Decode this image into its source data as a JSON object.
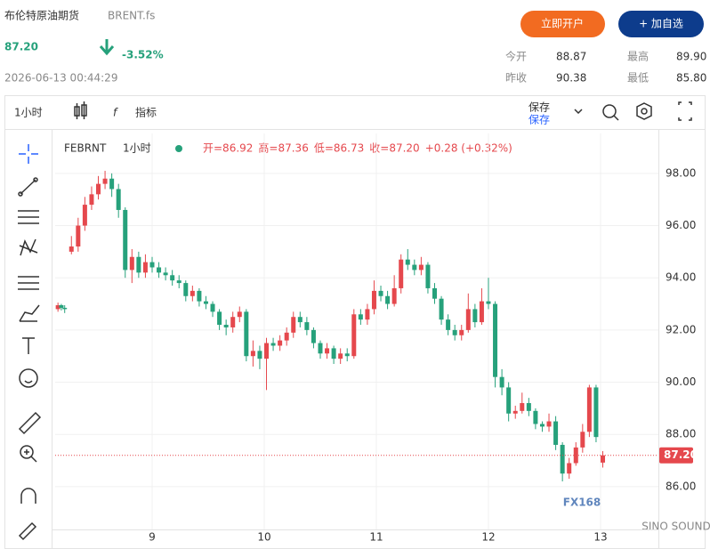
{
  "header": {
    "name": "布伦特原油期货",
    "code": "BRENT.fs",
    "price": "87.20",
    "change": "-3.52%",
    "datetime": "2026-06-13 00:44:29",
    "buttons": [
      "立即开户",
      "+ 加自选"
    ],
    "stats": [
      {
        "label": "今开",
        "value": "88.87"
      },
      {
        "label": "最高",
        "value": "89.90"
      },
      {
        "label": "昨收",
        "value": "90.38"
      },
      {
        "label": "最低",
        "value": "85.80"
      }
    ]
  },
  "toolbar": {
    "interval": "1小时",
    "indicators": "指标",
    "save": "保存",
    "save_sub": "保存"
  },
  "watermark": "FX168",
  "watermark_sub": "SINO SOUND",
  "chart_data": {
    "type": "candlestick",
    "symbol": "FEBRNT",
    "interval": "1小时",
    "legend": [
      "开=86.92",
      "高=87.36",
      "低=86.73",
      "收=87.20",
      "+0.28 (+0.32%)"
    ],
    "up_color": "#e5484d",
    "down_color": "#26a17b",
    "grid": true,
    "last_price": {
      "value": 87.2,
      "label": "87.20"
    },
    "xlim": [
      8.135,
      13.516
    ],
    "xticks": [
      9,
      10,
      11,
      12,
      13
    ],
    "ylim": [
      84.36,
      99.53
    ],
    "yticks": [
      {
        "value": 86,
        "label": "86.00"
      },
      {
        "value": 88,
        "label": "88.00"
      },
      {
        "value": 90,
        "label": "90.00"
      },
      {
        "value": 92,
        "label": "92.00"
      },
      {
        "value": 94,
        "label": "94.00"
      },
      {
        "value": 96,
        "label": "96.00"
      },
      {
        "value": 98,
        "label": "98.00"
      }
    ],
    "x": [
      8.16,
      8.19,
      8.22,
      8.28,
      8.34,
      8.4,
      8.46,
      8.52,
      8.58,
      8.64,
      8.7,
      8.76,
      8.82,
      8.88,
      8.94,
      9.0,
      9.06,
      9.12,
      9.18,
      9.24,
      9.3,
      9.36,
      9.42,
      9.48,
      9.54,
      9.6,
      9.66,
      9.72,
      9.78,
      9.84,
      9.9,
      9.96,
      10.02,
      10.08,
      10.14,
      10.2,
      10.26,
      10.32,
      10.38,
      10.44,
      10.5,
      10.56,
      10.62,
      10.68,
      10.74,
      10.8,
      10.86,
      10.92,
      10.98,
      11.04,
      11.1,
      11.16,
      11.22,
      11.28,
      11.34,
      11.4,
      11.46,
      11.52,
      11.58,
      11.64,
      11.7,
      11.76,
      11.82,
      11.88,
      11.94,
      12.0,
      12.06,
      12.12,
      12.18,
      12.24,
      12.3,
      12.36,
      12.42,
      12.48,
      12.54,
      12.6,
      12.66,
      12.72,
      12.78,
      12.84,
      12.9,
      12.96,
      13.02
    ],
    "open": [
      92.8,
      92.95,
      92.85,
      95.0,
      95.2,
      96.0,
      96.8,
      97.2,
      97.6,
      97.8,
      97.4,
      96.6,
      94.3,
      94.8,
      94.2,
      94.6,
      94.4,
      94.2,
      94.1,
      93.9,
      93.8,
      93.3,
      93.5,
      93.1,
      93.0,
      92.7,
      92.2,
      92.1,
      92.5,
      92.7,
      91.0,
      91.2,
      90.9,
      91.5,
      91.4,
      91.6,
      91.9,
      92.5,
      92.3,
      92.0,
      91.5,
      91.1,
      91.3,
      90.9,
      91.1,
      91.0,
      92.6,
      92.4,
      92.8,
      93.5,
      93.3,
      93.0,
      93.6,
      94.7,
      94.5,
      94.3,
      94.5,
      93.6,
      93.2,
      92.4,
      92.0,
      91.8,
      92.0,
      92.8,
      92.3,
      93.1,
      93.0,
      90.2,
      89.8,
      88.8,
      88.9,
      89.2,
      88.9,
      88.4,
      88.3,
      88.5,
      87.6,
      86.5,
      86.9,
      87.5,
      88.1,
      89.8,
      86.92
    ],
    "high": [
      93.05,
      93.0,
      92.95,
      95.6,
      96.3,
      97.1,
      97.5,
      97.9,
      98.1,
      98.0,
      97.6,
      96.7,
      95.1,
      95.0,
      94.9,
      94.8,
      94.6,
      94.4,
      94.3,
      94.1,
      93.9,
      93.7,
      93.6,
      93.3,
      93.1,
      92.8,
      92.4,
      92.7,
      92.9,
      92.8,
      91.6,
      91.4,
      91.7,
      91.7,
      91.8,
      92.1,
      92.7,
      92.7,
      92.5,
      92.1,
      91.6,
      91.5,
      91.4,
      91.3,
      91.3,
      92.8,
      92.8,
      93.0,
      93.9,
      93.7,
      93.5,
      94.1,
      94.9,
      95.1,
      94.7,
      94.8,
      94.6,
      93.8,
      93.3,
      92.6,
      92.2,
      92.2,
      93.4,
      93.0,
      93.6,
      94.0,
      93.1,
      90.5,
      90.0,
      89.1,
      89.6,
      89.4,
      89.0,
      88.5,
      88.8,
      88.7,
      87.7,
      87.1,
      87.7,
      88.4,
      89.9,
      89.9,
      87.36
    ],
    "low": [
      92.7,
      92.75,
      92.65,
      94.9,
      95.0,
      95.8,
      96.6,
      97.0,
      97.4,
      97.1,
      96.3,
      94.0,
      93.8,
      94.0,
      94.0,
      94.2,
      94.0,
      93.9,
      93.7,
      93.6,
      93.1,
      93.1,
      92.9,
      92.8,
      92.5,
      92.0,
      91.8,
      91.9,
      92.3,
      90.8,
      90.6,
      90.5,
      89.7,
      91.2,
      91.2,
      91.4,
      91.7,
      92.1,
      91.8,
      91.3,
      90.9,
      90.9,
      90.7,
      90.7,
      90.8,
      90.9,
      92.2,
      92.2,
      92.6,
      93.1,
      92.8,
      92.9,
      93.4,
      94.3,
      94.1,
      94.1,
      93.4,
      93.0,
      92.2,
      91.8,
      91.6,
      91.6,
      91.9,
      92.1,
      92.2,
      92.8,
      89.8,
      89.5,
      88.5,
      88.6,
      88.8,
      88.7,
      88.2,
      88.1,
      88.1,
      87.4,
      86.2,
      86.3,
      86.8,
      87.3,
      87.9,
      87.7,
      86.73
    ],
    "close": [
      92.95,
      92.85,
      92.8,
      95.2,
      96.0,
      96.8,
      97.2,
      97.6,
      97.8,
      97.4,
      96.6,
      94.3,
      94.8,
      94.2,
      94.6,
      94.4,
      94.2,
      94.1,
      93.9,
      93.8,
      93.3,
      93.5,
      93.1,
      93.0,
      92.7,
      92.2,
      92.1,
      92.5,
      92.7,
      91.0,
      91.2,
      90.9,
      91.5,
      91.4,
      91.6,
      91.9,
      92.5,
      92.3,
      92.0,
      91.5,
      91.1,
      91.3,
      90.9,
      91.1,
      91.0,
      92.6,
      92.4,
      92.8,
      93.5,
      93.3,
      93.0,
      93.6,
      94.7,
      94.5,
      94.3,
      94.5,
      93.6,
      93.2,
      92.4,
      92.0,
      91.8,
      92.0,
      92.8,
      92.3,
      93.1,
      93.0,
      90.2,
      89.8,
      88.8,
      88.9,
      89.2,
      88.9,
      88.4,
      88.3,
      88.5,
      87.6,
      86.5,
      86.9,
      87.5,
      88.1,
      89.8,
      87.9,
      87.2
    ]
  }
}
